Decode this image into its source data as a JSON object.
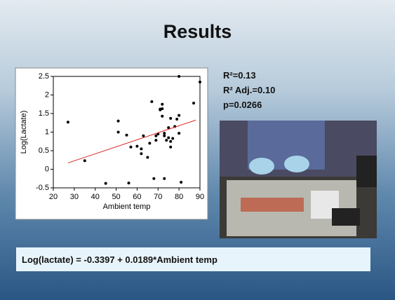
{
  "title": "Results",
  "stats": [
    "R²=0.13",
    "R² Adj.=0.10",
    "p=0.0266"
  ],
  "equation": "Log(lactate) = -0.3397 + 0.0189*Ambient temp",
  "chart_data": {
    "type": "scatter",
    "x_label": "Ambient temp",
    "y_label": "Log(Lactate)",
    "xlim": [
      20,
      90
    ],
    "xticks": [
      20,
      30,
      40,
      50,
      60,
      70,
      80,
      90
    ],
    "ylim": [
      -0.5,
      2.5
    ],
    "yticks": [
      -0.5,
      0,
      0.5,
      1,
      1.5,
      2,
      2.5
    ],
    "series": [
      {
        "type": "scatter",
        "color": "#000000",
        "x": [
          27,
          35,
          45,
          51,
          51,
          55,
          56,
          57,
          60,
          62,
          62,
          63,
          65,
          66,
          67,
          68,
          69,
          69,
          70,
          71,
          71,
          72,
          72,
          72,
          73,
          73,
          73,
          74,
          75,
          75,
          76,
          76,
          76,
          77,
          78,
          79,
          80,
          80,
          81,
          80,
          87,
          90
        ],
        "values": [
          1.27,
          0.23,
          -0.38,
          1.3,
          1.0,
          0.92,
          -0.37,
          0.6,
          0.62,
          0.55,
          0.42,
          0.9,
          0.32,
          0.7,
          1.82,
          -0.25,
          0.9,
          0.78,
          0.95,
          1.6,
          1.62,
          1.63,
          1.43,
          1.75,
          0.97,
          0.9,
          -0.25,
          0.78,
          0.85,
          1.12,
          0.75,
          1.37,
          0.6,
          0.83,
          1.15,
          1.35,
          0.97,
          1.45,
          -0.35,
          2.5,
          1.78,
          2.35
        ]
      },
      {
        "type": "line",
        "color": "#d62728",
        "x": [
          27,
          88
        ],
        "values": [
          0.171,
          1.323
        ]
      }
    ]
  }
}
